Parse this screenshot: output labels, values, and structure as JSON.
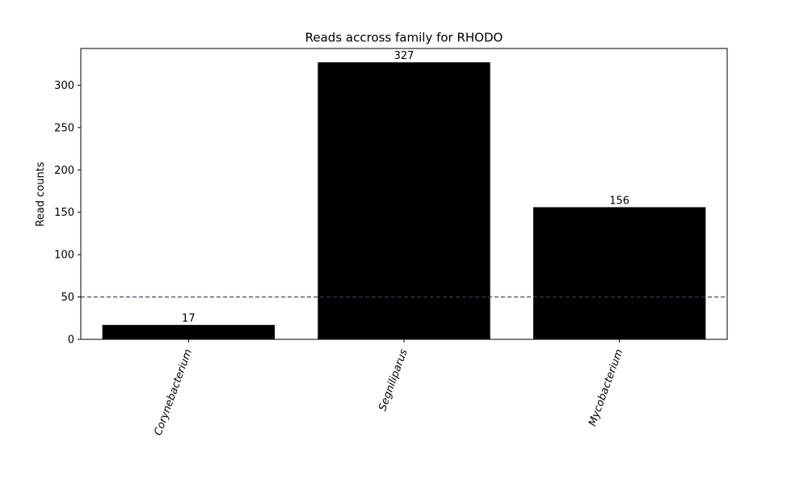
{
  "chart_data": {
    "type": "bar",
    "title": "Reads accross family for RHODO",
    "xlabel": "",
    "ylabel": "Read counts",
    "categories": [
      "Corynebacterium",
      "Segniliparus",
      "Mycobacterium"
    ],
    "values": [
      17,
      327,
      156
    ],
    "data_labels": [
      "17",
      "327",
      "156"
    ],
    "ylim": [
      0,
      343.35
    ],
    "yticks": [
      0,
      50,
      100,
      150,
      200,
      250,
      300
    ],
    "ytick_labels": [
      "0",
      "50",
      "100",
      "150",
      "200",
      "250",
      "300"
    ],
    "threshold": 50,
    "grid": false,
    "colors": {
      "bar": "#000000",
      "threshold_line": "#3b3b5c",
      "axis": "#000000",
      "background": "#ffffff"
    }
  }
}
